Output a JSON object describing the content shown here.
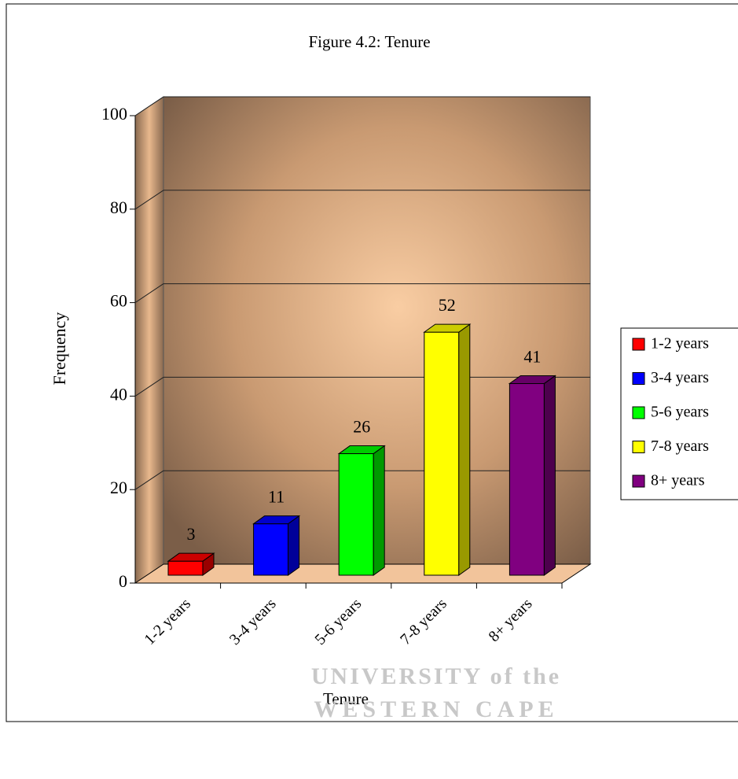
{
  "chart_data": {
    "type": "bar3d",
    "title": "Figure 4.2: Tenure",
    "x_label": "Tenure",
    "y_label": "Frequency",
    "categories": [
      "1-2 years",
      "3-4 years",
      "5-6 years",
      "7-8 years",
      "8+ years"
    ],
    "values": [
      3,
      11,
      26,
      52,
      41
    ],
    "colors": [
      "#ff0000",
      "#0000ff",
      "#00ff00",
      "#ffff00",
      "#800080"
    ],
    "ylim": [
      0,
      100
    ],
    "yticks": [
      0,
      20,
      40,
      60,
      80,
      100
    ],
    "grid": true,
    "legend": "right"
  },
  "watermark": [
    "UNIVERSITY of the",
    "WESTERN CAPE"
  ]
}
